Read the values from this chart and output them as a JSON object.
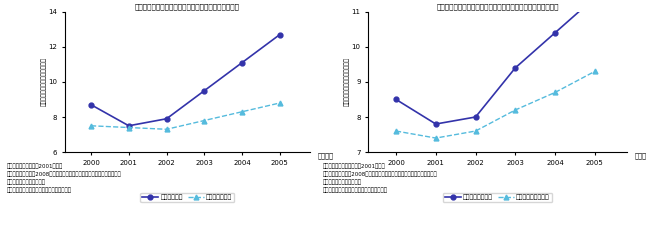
{
  "years": [
    2000,
    2001,
    2002,
    2003,
    2004,
    2005
  ],
  "left_title": "輸出開始企業と輸出非開始企業の労働生産性（日本）",
  "left_series1_label": "輸出開始企業",
  "left_series1_values": [
    8.7,
    7.5,
    7.9,
    9.5,
    11.1,
    12.7
  ],
  "left_series2_label": "輸出非開始企業",
  "left_series2_values": [
    7.5,
    7.4,
    7.3,
    7.8,
    8.3,
    8.8
  ],
  "left_ylim": [
    6,
    14
  ],
  "left_yticks": [
    6,
    8,
    10,
    12,
    14
  ],
  "right_title": "直接投資開始企業と直接投資非開始企業の労働生産性（日本）",
  "right_series1_label": "直接投資開始企業",
  "right_series1_values": [
    8.5,
    7.8,
    8.0,
    9.4,
    10.4,
    11.4
  ],
  "right_series2_label": "直接投資非開始企業",
  "right_series2_values": [
    7.6,
    7.4,
    7.6,
    8.2,
    8.7,
    9.3
  ],
  "right_ylim": [
    7,
    11
  ],
  "right_yticks": [
    7,
    8,
    9,
    10,
    11
  ],
  "ylabel": "労働者一人当たりの付加価値額",
  "xlabel_suffix": "（年度）",
  "color_series1": "#3333aa",
  "color_series2": "#55bbdd",
  "note1_left": "備考：輸出開始年度は2001年度。",
  "note2_left": "資料：若杉隆平他（2008）「国際化する日本企業の実像－企業レベルデー",
  "note3_left": "　　たに基づく分析－」。",
  "note4_left": "原出所：経済産業省「企業活動基本調査」。",
  "note1_right": "備考：直接投資開始年度は2001年度。",
  "note2_right": "資料：若杉隆平他（2008）「国際化する日本企業の実像－企業レベルデー",
  "note3_right": "　　たに基づく分析－」。",
  "note4_right": "原出所：経済産業省「企業活動基本調査」。"
}
